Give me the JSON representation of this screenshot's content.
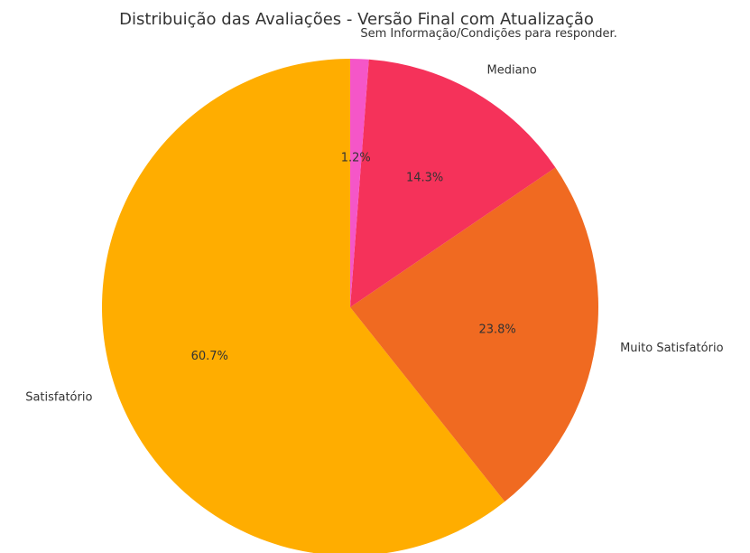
{
  "chart_data": {
    "type": "pie",
    "title": "Distribuição das Avaliações - Versão Final com Atualização",
    "categories": [
      "Satisfatório",
      "Muito Satisfatório",
      "Mediano",
      "Sem Informação/Condições para responder."
    ],
    "values": [
      60.7,
      23.8,
      14.3,
      1.2
    ],
    "value_labels": [
      "60.7%",
      "23.8%",
      "14.3%",
      "1.2%"
    ],
    "colors": [
      "#ffad00",
      "#f06a21",
      "#f5325a",
      "#f556c8"
    ],
    "start_angle": 90,
    "counterclockwise": true
  }
}
